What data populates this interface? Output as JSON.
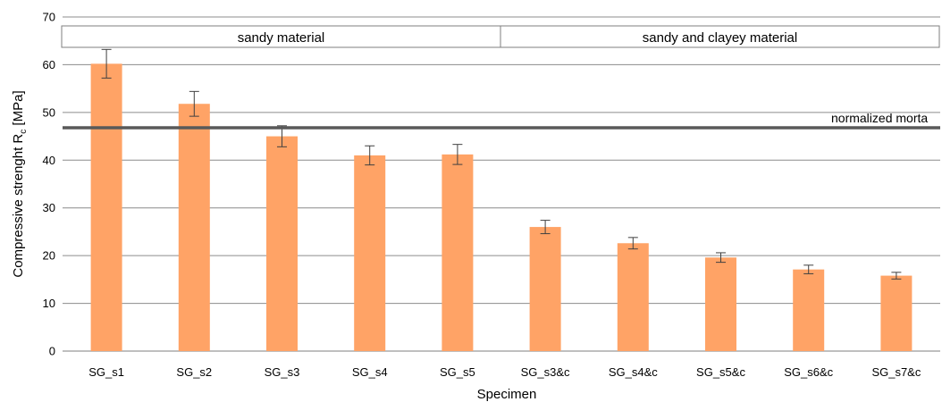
{
  "chart_data": {
    "type": "bar",
    "categories": [
      "SG_s1",
      "SG_s2",
      "SG_s3",
      "SG_s4",
      "SG_s5",
      "SG_s3&c",
      "SG_s4&c",
      "SG_s5&c",
      "SG_s6&c",
      "SG_s7&c"
    ],
    "values": [
      60.2,
      51.8,
      45.0,
      41.0,
      41.2,
      26.0,
      22.6,
      19.6,
      17.1,
      15.8
    ],
    "errors": [
      3.0,
      2.6,
      2.2,
      2.0,
      2.1,
      1.4,
      1.2,
      1.0,
      0.9,
      0.7
    ],
    "xlabel": "Specimen",
    "ylabel": "Compressive strenght R",
    "ylabel_subscript": "c",
    "ylabel_unit": " [MPa]",
    "ylim": [
      0,
      70
    ],
    "yticks": [
      0,
      10,
      20,
      30,
      40,
      50,
      60,
      70
    ],
    "grid": true,
    "bar_color": "#FFA366",
    "reference_line": {
      "value": 46.8,
      "label": "normalized morta",
      "color": "#595959"
    },
    "annotations": [
      {
        "text": "sandy material",
        "from_category": 0,
        "to_category": 4
      },
      {
        "text": "sandy and clayey material",
        "from_category": 5,
        "to_category": 9
      }
    ]
  }
}
